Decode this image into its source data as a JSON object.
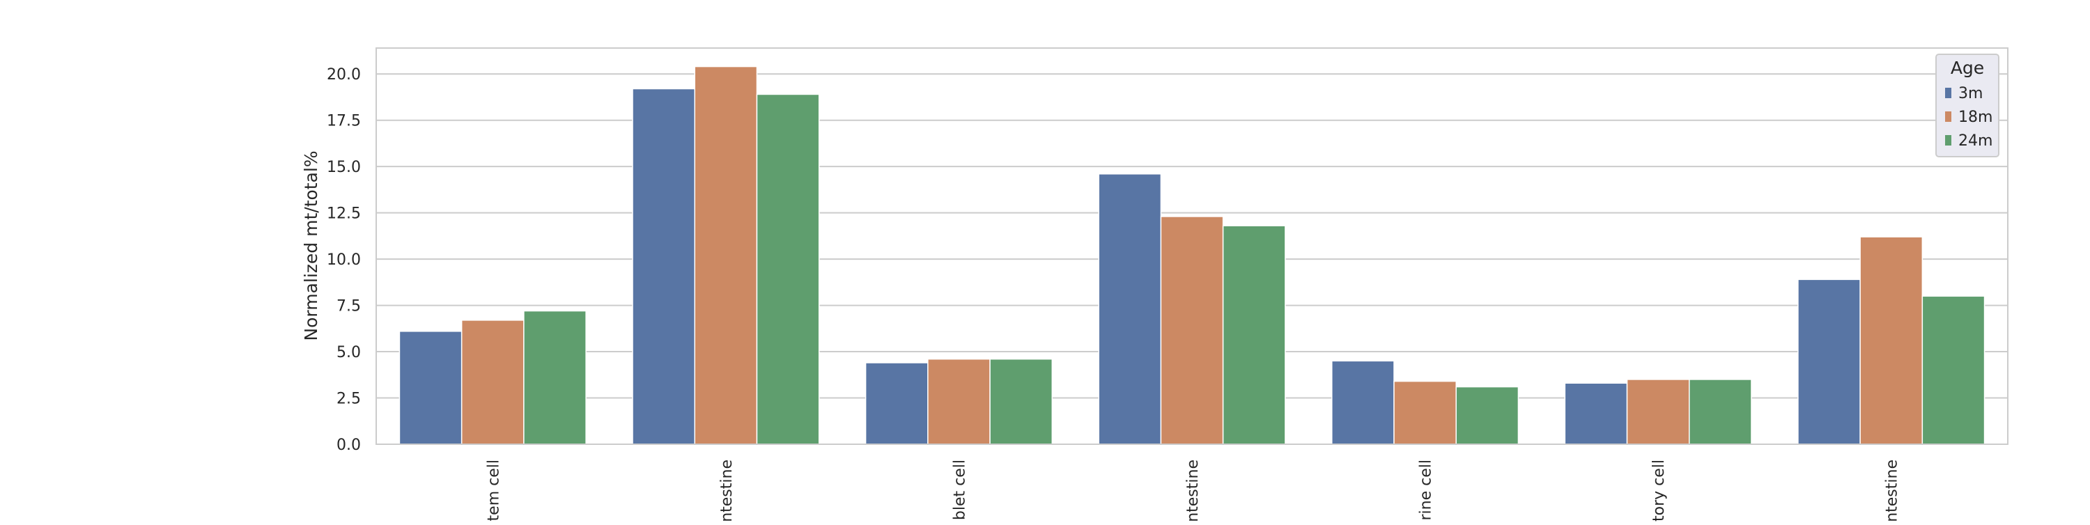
{
  "chart_data": {
    "type": "bar",
    "title": "",
    "xlabel": "",
    "ylabel": "Normalized mt/total%",
    "ylim": [
      0,
      21.4
    ],
    "yticks": [
      "0.0",
      "2.5",
      "5.0",
      "7.5",
      "10.0",
      "12.5",
      "15.0",
      "17.5",
      "20.0"
    ],
    "grid": true,
    "legend": {
      "title": "Age",
      "placement": "top-right"
    },
    "categories": [
      "tem cell",
      "ntestine",
      "blet cell",
      "ntestine",
      "rine cell",
      "tory cell",
      "ntestine"
    ],
    "series": [
      {
        "name": "3m",
        "color": "#5875a4",
        "values": [
          6.1,
          19.2,
          4.4,
          14.6,
          4.5,
          3.3,
          8.9
        ]
      },
      {
        "name": "18m",
        "color": "#cc8963",
        "values": [
          6.7,
          20.4,
          4.6,
          12.3,
          3.4,
          3.5,
          11.2
        ]
      },
      {
        "name": "24m",
        "color": "#5f9e6e",
        "values": [
          7.2,
          18.9,
          4.6,
          11.8,
          3.1,
          3.5,
          8.0
        ]
      }
    ]
  }
}
